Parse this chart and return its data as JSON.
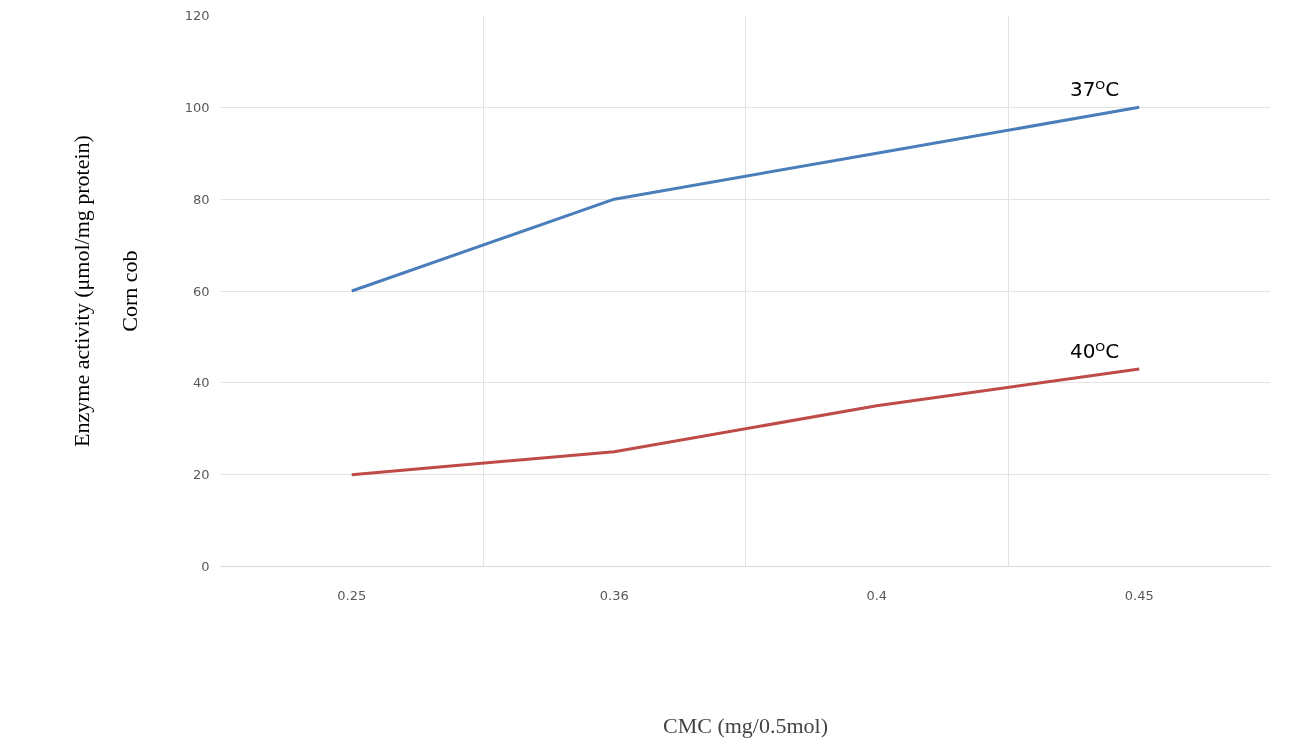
{
  "chart_data": {
    "type": "line",
    "ylabel": "Corn cob",
    "xlabel": "CMC (mg/0.5mol)",
    "annotations": [
      "Enzyme activity (μmol/mg protein)"
    ],
    "categories": [
      "0.25",
      "0.36",
      "0.4",
      "0.45"
    ],
    "series": [
      {
        "name": "37ᴼC",
        "color": "#4a7ebb",
        "values": [
          60,
          80,
          90,
          100
        ]
      },
      {
        "name": "40ᴼC",
        "color": "#be4b48",
        "values": [
          20,
          25,
          35,
          43
        ]
      }
    ],
    "ylim": [
      0,
      120
    ],
    "yticks": [
      0,
      20,
      40,
      60,
      80,
      100,
      120
    ],
    "grid": true,
    "marker": "none",
    "line_style": "solid"
  }
}
